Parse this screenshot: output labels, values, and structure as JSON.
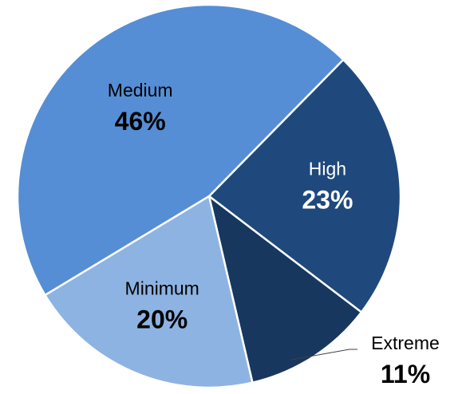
{
  "chart_data": {
    "type": "pie",
    "start_angle_deg": 44.5,
    "direction": "clockwise",
    "slices": [
      {
        "label": "High",
        "value": 23,
        "value_label": "23%",
        "color": "#1f497d",
        "text_color": "#ffffff"
      },
      {
        "label": "Extreme",
        "value": 11,
        "value_label": "11%",
        "color": "#17375e",
        "text_color": "#000000"
      },
      {
        "label": "Minimum",
        "value": 20,
        "value_label": "20%",
        "color": "#8db3e2",
        "text_color": "#000000"
      },
      {
        "label": "Medium",
        "value": 46,
        "value_label": "46%",
        "color": "#558ed5",
        "text_color": "#000000"
      }
    ]
  }
}
